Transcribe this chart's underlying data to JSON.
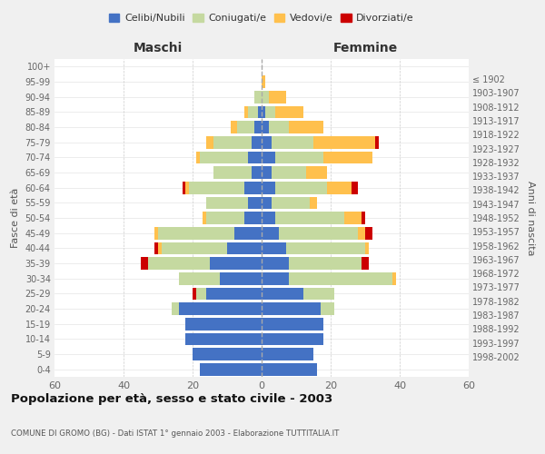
{
  "age_groups": [
    "0-4",
    "5-9",
    "10-14",
    "15-19",
    "20-24",
    "25-29",
    "30-34",
    "35-39",
    "40-44",
    "45-49",
    "50-54",
    "55-59",
    "60-64",
    "65-69",
    "70-74",
    "75-79",
    "80-84",
    "85-89",
    "90-94",
    "95-99",
    "100+"
  ],
  "birth_years": [
    "1998-2002",
    "1993-1997",
    "1988-1992",
    "1983-1987",
    "1978-1982",
    "1973-1977",
    "1968-1972",
    "1963-1967",
    "1958-1962",
    "1953-1957",
    "1948-1952",
    "1943-1947",
    "1938-1942",
    "1933-1937",
    "1928-1932",
    "1923-1927",
    "1918-1922",
    "1913-1917",
    "1908-1912",
    "1903-1907",
    "≤ 1902"
  ],
  "maschi": {
    "celibi": [
      18,
      20,
      22,
      22,
      24,
      16,
      12,
      15,
      10,
      8,
      5,
      4,
      5,
      3,
      4,
      3,
      2,
      1,
      0,
      0,
      0
    ],
    "coniugati": [
      0,
      0,
      0,
      0,
      2,
      3,
      12,
      18,
      19,
      22,
      11,
      12,
      16,
      11,
      14,
      11,
      5,
      3,
      2,
      0,
      0
    ],
    "vedovi": [
      0,
      0,
      0,
      0,
      0,
      0,
      0,
      0,
      1,
      1,
      1,
      0,
      1,
      0,
      1,
      2,
      2,
      1,
      0,
      0,
      0
    ],
    "divorziati": [
      0,
      0,
      0,
      0,
      0,
      1,
      0,
      2,
      1,
      0,
      0,
      0,
      1,
      0,
      0,
      0,
      0,
      0,
      0,
      0,
      0
    ]
  },
  "femmine": {
    "nubili": [
      16,
      15,
      18,
      18,
      17,
      12,
      8,
      8,
      7,
      5,
      4,
      3,
      4,
      3,
      4,
      3,
      2,
      1,
      0,
      0,
      0
    ],
    "coniugate": [
      0,
      0,
      0,
      0,
      4,
      9,
      30,
      21,
      23,
      23,
      20,
      11,
      15,
      10,
      14,
      12,
      6,
      3,
      2,
      0,
      0
    ],
    "vedove": [
      0,
      0,
      0,
      0,
      0,
      0,
      1,
      0,
      1,
      2,
      5,
      2,
      7,
      6,
      14,
      18,
      10,
      8,
      5,
      1,
      0
    ],
    "divorziate": [
      0,
      0,
      0,
      0,
      0,
      0,
      0,
      2,
      0,
      2,
      1,
      0,
      2,
      0,
      0,
      1,
      0,
      0,
      0,
      0,
      0
    ]
  },
  "colors": {
    "celibi": "#4472C4",
    "coniugati": "#c5d9a0",
    "vedovi": "#ffc04d",
    "divorziati": "#cc0000"
  },
  "xlim": 60,
  "title": "Popolazione per età, sesso e stato civile - 2003",
  "subtitle": "COMUNE DI GROMO (BG) - Dati ISTAT 1° gennaio 2003 - Elaborazione TUTTITALIA.IT",
  "xlabel_left": "Maschi",
  "xlabel_right": "Femmine",
  "ylabel_left": "Fasce di età",
  "ylabel_right": "Anni di nascita",
  "legend_labels": [
    "Celibi/Nubili",
    "Coniugati/e",
    "Vedovi/e",
    "Divorziati/e"
  ],
  "background_color": "#f0f0f0",
  "plot_background": "#ffffff"
}
